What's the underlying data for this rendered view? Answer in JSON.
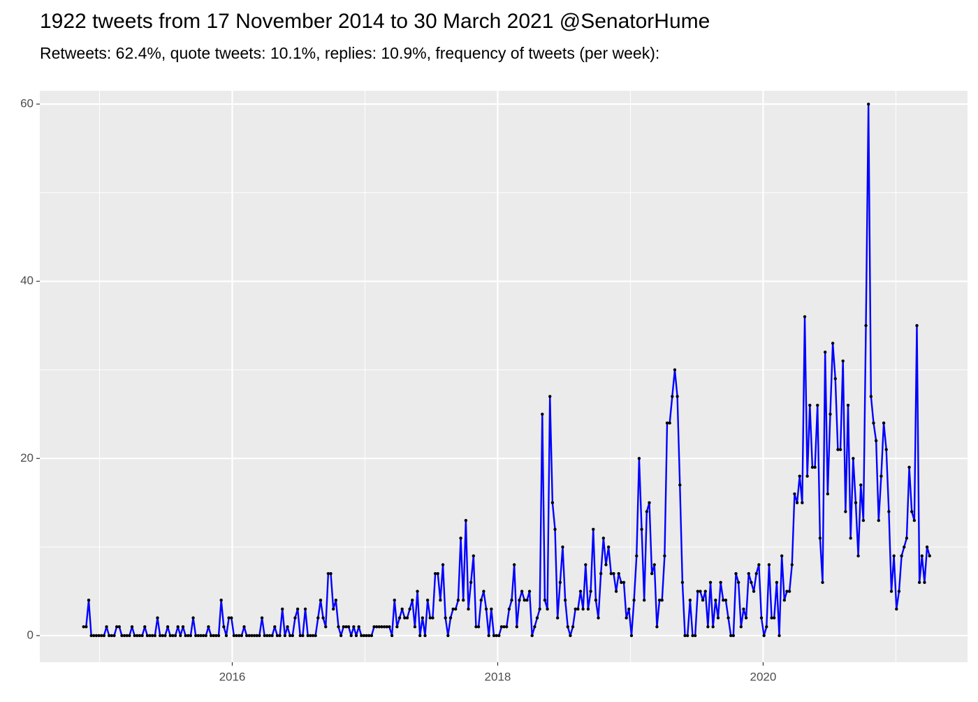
{
  "chart_data": {
    "type": "line",
    "title": "1922 tweets from 17 November 2014 to 30 March 2021 @SenatorHume",
    "subtitle": "Retweets: 62.4%, quote tweets: 10.1%, replies: 10.9%, frequency of tweets (per week):",
    "color": "#0000ff",
    "point_color": "#000000",
    "grid": true,
    "xlim": [
      2014.55,
      2021.54
    ],
    "xticks": [
      2016,
      2018,
      2020
    ],
    "ylim": [
      -3,
      61.5
    ],
    "yticks": [
      0,
      20,
      40,
      60
    ],
    "x": [
      2014.88,
      2014.8992,
      2014.9184,
      2014.9376,
      2014.9568,
      2014.976,
      2014.9952,
      2015.0144,
      2015.0336,
      2015.0528,
      2015.072,
      2015.0912,
      2015.1104,
      2015.1296,
      2015.1488,
      2015.168,
      2015.1872,
      2015.2064,
      2015.2256,
      2015.2448,
      2015.264,
      2015.2832,
      2015.3024,
      2015.3216,
      2015.3408,
      2015.36,
      2015.3792,
      2015.3984,
      2015.4176,
      2015.4368,
      2015.456,
      2015.4752,
      2015.4944,
      2015.5136,
      2015.5328,
      2015.552,
      2015.5712,
      2015.5904,
      2015.6096,
      2015.6288,
      2015.648,
      2015.6672,
      2015.6864,
      2015.7056,
      2015.7248,
      2015.744,
      2015.7632,
      2015.7824,
      2015.8016,
      2015.8208,
      2015.84,
      2015.8592,
      2015.8784,
      2015.8976,
      2015.9168,
      2015.936,
      2015.9552,
      2015.9744,
      2015.9936,
      2016.0128,
      2016.032,
      2016.0512,
      2016.0704,
      2016.0896,
      2016.1088,
      2016.128,
      2016.1472,
      2016.1664,
      2016.1856,
      2016.2048,
      2016.224,
      2016.2432,
      2016.2624,
      2016.2816,
      2016.3008,
      2016.32,
      2016.3392,
      2016.3584,
      2016.3776,
      2016.3968,
      2016.416,
      2016.4352,
      2016.4544,
      2016.4736,
      2016.4928,
      2016.512,
      2016.5312,
      2016.5504,
      2016.5696,
      2016.5888,
      2016.608,
      2016.6272,
      2016.6464,
      2016.6656,
      2016.6848,
      2016.704,
      2016.7232,
      2016.7424,
      2016.7616,
      2016.7808,
      2016.8,
      2016.8192,
      2016.8384,
      2016.8576,
      2016.8768,
      2016.896,
      2016.9152,
      2016.9344,
      2016.9536,
      2016.9728,
      2016.992,
      2017.0112,
      2017.0304,
      2017.0496,
      2017.0688,
      2017.088,
      2017.1072,
      2017.1264,
      2017.1456,
      2017.1648,
      2017.184,
      2017.2032,
      2017.2224,
      2017.2416,
      2017.2608,
      2017.28,
      2017.2992,
      2017.3184,
      2017.3376,
      2017.3568,
      2017.376,
      2017.3952,
      2017.4144,
      2017.4336,
      2017.4528,
      2017.472,
      2017.4912,
      2017.5104,
      2017.5296,
      2017.5488,
      2017.568,
      2017.5872,
      2017.6064,
      2017.6256,
      2017.6448,
      2017.664,
      2017.6832,
      2017.7024,
      2017.7216,
      2017.7408,
      2017.76,
      2017.7792,
      2017.7984,
      2017.8176,
      2017.8368,
      2017.856,
      2017.8752,
      2017.8944,
      2017.9136,
      2017.9328,
      2017.952,
      2017.9712,
      2017.9904,
      2018.0096,
      2018.0288,
      2018.048,
      2018.0672,
      2018.0864,
      2018.1056,
      2018.1248,
      2018.144,
      2018.1632,
      2018.1824,
      2018.2016,
      2018.2208,
      2018.24,
      2018.2592,
      2018.2784,
      2018.2976,
      2018.3168,
      2018.336,
      2018.3552,
      2018.3744,
      2018.3936,
      2018.4128,
      2018.432,
      2018.4512,
      2018.4704,
      2018.4896,
      2018.5088,
      2018.528,
      2018.5472,
      2018.5664,
      2018.5856,
      2018.6048,
      2018.624,
      2018.6432,
      2018.6624,
      2018.6816,
      2018.7008,
      2018.72,
      2018.7392,
      2018.7584,
      2018.7776,
      2018.7968,
      2018.816,
      2018.8352,
      2018.8544,
      2018.8736,
      2018.8928,
      2018.912,
      2018.9312,
      2018.9504,
      2018.9696,
      2018.9888,
      2019.008,
      2019.0272,
      2019.0464,
      2019.0656,
      2019.0848,
      2019.104,
      2019.1232,
      2019.1424,
      2019.1616,
      2019.1808,
      2019.2,
      2019.2192,
      2019.2384,
      2019.2576,
      2019.2768,
      2019.296,
      2019.3152,
      2019.3344,
      2019.3536,
      2019.3728,
      2019.392,
      2019.4112,
      2019.4304,
      2019.4496,
      2019.4688,
      2019.488,
      2019.5072,
      2019.5264,
      2019.5456,
      2019.5648,
      2019.584,
      2019.6032,
      2019.6224,
      2019.6416,
      2019.6608,
      2019.68,
      2019.6992,
      2019.7184,
      2019.7376,
      2019.7568,
      2019.776,
      2019.7952,
      2019.8144,
      2019.8336,
      2019.8528,
      2019.872,
      2019.8912,
      2019.9104,
      2019.9296,
      2019.9488,
      2019.968,
      2019.9872,
      2020.0064,
      2020.0256,
      2020.0448,
      2020.064,
      2020.0832,
      2020.1024,
      2020.1216,
      2020.1408,
      2020.16,
      2020.1792,
      2020.1984,
      2020.2176,
      2020.2368,
      2020.256,
      2020.2752,
      2020.2944,
      2020.3136,
      2020.3328,
      2020.352,
      2020.3712,
      2020.3904,
      2020.4096,
      2020.4288,
      2020.448,
      2020.4672,
      2020.4864,
      2020.5056,
      2020.5248,
      2020.544,
      2020.5632,
      2020.5824,
      2020.6016,
      2020.6208,
      2020.64,
      2020.6592,
      2020.6784,
      2020.6976,
      2020.7168,
      2020.736,
      2020.7552,
      2020.7744,
      2020.7936,
      2020.8128,
      2020.832,
      2020.8512,
      2020.8704,
      2020.8896,
      2020.9088,
      2020.928,
      2020.9472,
      2020.9664,
      2020.9856,
      2021.0048,
      2021.024,
      2021.0432,
      2021.0624,
      2021.0816,
      2021.1008,
      2021.12,
      2021.1392,
      2021.1584,
      2021.1776,
      2021.1968,
      2021.216,
      2021.2352,
      2021.2544
    ],
    "values": [
      1,
      1,
      4,
      0,
      0,
      0,
      0,
      0,
      0,
      1,
      0,
      0,
      0,
      1,
      1,
      0,
      0,
      0,
      0,
      1,
      0,
      0,
      0,
      0,
      1,
      0,
      0,
      0,
      0,
      2,
      0,
      0,
      0,
      1,
      0,
      0,
      0,
      1,
      0,
      1,
      0,
      0,
      0,
      2,
      0,
      0,
      0,
      0,
      0,
      1,
      0,
      0,
      0,
      0,
      4,
      1,
      0,
      2,
      2,
      0,
      0,
      0,
      0,
      1,
      0,
      0,
      0,
      0,
      0,
      0,
      2,
      0,
      0,
      0,
      0,
      1,
      0,
      0,
      3,
      0,
      1,
      0,
      0,
      2,
      3,
      0,
      0,
      3,
      0,
      0,
      0,
      0,
      2,
      4,
      2,
      1,
      7,
      7,
      3,
      4,
      1,
      0,
      1,
      1,
      1,
      0,
      1,
      0,
      1,
      0,
      0,
      0,
      0,
      0,
      1,
      1,
      1,
      1,
      1,
      1,
      1,
      0,
      4,
      1,
      2,
      3,
      2,
      2,
      3,
      4,
      1,
      5,
      0,
      2,
      0,
      4,
      2,
      2,
      7,
      7,
      4,
      8,
      2,
      0,
      2,
      3,
      3,
      4,
      11,
      4,
      13,
      3,
      6,
      9,
      1,
      1,
      4,
      5,
      3,
      0,
      3,
      0,
      0,
      0,
      1,
      1,
      1,
      3,
      4,
      8,
      1,
      4,
      5,
      4,
      4,
      5,
      0,
      1,
      2,
      3,
      25,
      4,
      3,
      27,
      15,
      12,
      2,
      6,
      10,
      4,
      1,
      0,
      1,
      3,
      3,
      5,
      3,
      8,
      3,
      5,
      12,
      4,
      2,
      7,
      11,
      8,
      10,
      7,
      7,
      5,
      7,
      6,
      6,
      2,
      3,
      0,
      4,
      9,
      20,
      12,
      4,
      14,
      15,
      7,
      8,
      1,
      4,
      4,
      9,
      24,
      24,
      27,
      30,
      27,
      17,
      6,
      0,
      0,
      4,
      0,
      0,
      5,
      5,
      4,
      5,
      1,
      6,
      1,
      4,
      2,
      6,
      4,
      4,
      2,
      0,
      0,
      7,
      6,
      1,
      3,
      2,
      7,
      6,
      5,
      7,
      8,
      2,
      0,
      1,
      8,
      2,
      2,
      6,
      0,
      9,
      4,
      5,
      5,
      8,
      16,
      15,
      18,
      15,
      36,
      18,
      26,
      19,
      19,
      26,
      11,
      6,
      32,
      16,
      25,
      33,
      29,
      21,
      21,
      31,
      14,
      26,
      11,
      20,
      15,
      9,
      17,
      13,
      35,
      60,
      27,
      24,
      22,
      13,
      18,
      24,
      21,
      14,
      5,
      9,
      3,
      5,
      9,
      10,
      11,
      19,
      14,
      13,
      35,
      6,
      9,
      6,
      10,
      9
    ]
  }
}
